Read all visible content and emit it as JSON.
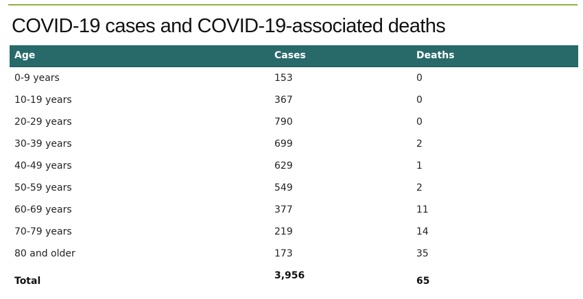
{
  "page": {
    "title": "COVID-19 cases and COVID-19-associated deaths",
    "accent_rule_color": "#8fb13c",
    "header_color": "#286a6a"
  },
  "table": {
    "headers": [
      "Age",
      "Cases",
      "Deaths"
    ],
    "rows": [
      {
        "age": "0-9 years",
        "cases": "153",
        "deaths": "0"
      },
      {
        "age": "10-19 years",
        "cases": "367",
        "deaths": "0"
      },
      {
        "age": "20-29 years",
        "cases": "790",
        "deaths": "0"
      },
      {
        "age": "30-39 years",
        "cases": "699",
        "deaths": "2"
      },
      {
        "age": "40-49 years",
        "cases": "629",
        "deaths": "1"
      },
      {
        "age": "50-59 years",
        "cases": "549",
        "deaths": "2"
      },
      {
        "age": "60-69 years",
        "cases": "377",
        "deaths": "11"
      },
      {
        "age": "70-79 years",
        "cases": "219",
        "deaths": "14"
      },
      {
        "age": "80 and older",
        "cases": "173",
        "deaths": "35"
      }
    ],
    "total": {
      "label": "Total",
      "cases": "3,956",
      "deaths": "65"
    }
  }
}
